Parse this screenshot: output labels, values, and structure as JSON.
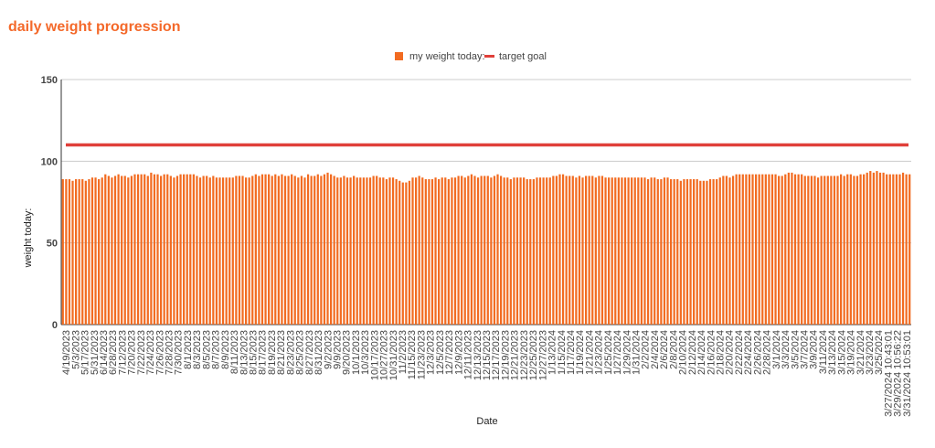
{
  "chart_data": {
    "type": "bar",
    "title": "daily weight progression",
    "xlabel": "Date",
    "ylabel": "weight today:",
    "ylim": [
      0,
      150
    ],
    "yticks": [
      0,
      50,
      100,
      150
    ],
    "grid": true,
    "legend_position": "top-center",
    "colors": {
      "bar": "#f26b21",
      "target": "#e0403a",
      "title": "#f4692a"
    },
    "series": [
      {
        "name": "my weight today:",
        "kind": "bar",
        "values": [
          89,
          89,
          89,
          88,
          89,
          89,
          89,
          88,
          89,
          90,
          90,
          89,
          90,
          92,
          91,
          90,
          91,
          92,
          91,
          91,
          90,
          91,
          92,
          92,
          92,
          92,
          91,
          93,
          92,
          92,
          91,
          92,
          92,
          91,
          90,
          91,
          92,
          92,
          92,
          92,
          92,
          91,
          90,
          91,
          91,
          90,
          91,
          90,
          90,
          90,
          90,
          90,
          90,
          91,
          91,
          91,
          90,
          90,
          91,
          92,
          91,
          92,
          92,
          92,
          91,
          92,
          91,
          92,
          91,
          91,
          92,
          91,
          90,
          91,
          90,
          92,
          91,
          91,
          92,
          91,
          92,
          93,
          92,
          91,
          90,
          90,
          91,
          90,
          90,
          91,
          90,
          90,
          90,
          90,
          90,
          91,
          91,
          90,
          90,
          89,
          90,
          90,
          89,
          88,
          87,
          87,
          88,
          90,
          90,
          91,
          90,
          89,
          89,
          89,
          90,
          89,
          90,
          90,
          89,
          90,
          90,
          91,
          91,
          90,
          91,
          92,
          91,
          90,
          91,
          91,
          91,
          90,
          91,
          92,
          91,
          90,
          90,
          89,
          90,
          90,
          90,
          90,
          89,
          89,
          89,
          90,
          90,
          90,
          90,
          90,
          91,
          91,
          92,
          92,
          91,
          91,
          91,
          90,
          91,
          90,
          91,
          91,
          91,
          90,
          91,
          91,
          90,
          90,
          90,
          90,
          90,
          90,
          90,
          90,
          90,
          90,
          90,
          90,
          90,
          89,
          90,
          90,
          89,
          89,
          90,
          90,
          89,
          89,
          89,
          88,
          89,
          89,
          89,
          89,
          89,
          88,
          88,
          88,
          89,
          89,
          89,
          90,
          91,
          91,
          90,
          91,
          92,
          92,
          92,
          92,
          92,
          92,
          92,
          92,
          92,
          92,
          92,
          92,
          92,
          91,
          91,
          92,
          93,
          93,
          92,
          92,
          92,
          91,
          91,
          91,
          91,
          90,
          91,
          91,
          91,
          91,
          91,
          91,
          92,
          91,
          92,
          92,
          91,
          91,
          92,
          92,
          93,
          94,
          93,
          94,
          93,
          93,
          92,
          92,
          92,
          92,
          92,
          93,
          92,
          92
        ]
      },
      {
        "name": "target goal",
        "kind": "line",
        "value": 110
      }
    ],
    "category_labels": [
      "4/19/2023",
      "5/3/2023",
      "5/17/2023",
      "5/31/2023",
      "6/14/2023",
      "6/28/2023",
      "7/12/2023",
      "7/20/2023",
      "7/22/2023",
      "7/24/2023",
      "7/26/2023",
      "7/28/2023",
      "7/30/2023",
      "8/1/2023",
      "8/3/2023",
      "8/5/2023",
      "8/7/2023",
      "8/9/2023",
      "8/11/2023",
      "8/13/2023",
      "8/15/2023",
      "8/17/2023",
      "8/19/2023",
      "8/21/2023",
      "8/23/2023",
      "8/25/2023",
      "8/27/2023",
      "8/31/2023",
      "9/2/2023",
      "9/9/2023",
      "9/20/2023",
      "10/1/2023",
      "10/3/2023",
      "10/17/2023",
      "10/27/2023",
      "10/31/2023",
      "11/2/2023",
      "11/15/2023",
      "11/23/2023",
      "12/3/2023",
      "12/5/2023",
      "12/7/2023",
      "12/9/2023",
      "12/11/2023",
      "12/13/2023",
      "12/15/2023",
      "12/17/2023",
      "12/19/2023",
      "12/21/2023",
      "12/23/2023",
      "12/25/2023",
      "12/27/2023",
      "1/13/2024",
      "1/15/2024",
      "1/17/2024",
      "1/19/2024",
      "1/21/2024",
      "1/23/2024",
      "1/25/2024",
      "1/27/2024",
      "1/29/2024",
      "1/31/2024",
      "2/2/2024",
      "2/4/2024",
      "2/6/2024",
      "2/8/2024",
      "2/10/2024",
      "2/12/2024",
      "2/14/2024",
      "2/16/2024",
      "2/18/2024",
      "2/20/2024",
      "2/22/2024",
      "2/24/2024",
      "2/26/2024",
      "2/28/2024",
      "3/1/2024",
      "3/3/2024",
      "3/5/2024",
      "3/7/2024",
      "3/9/2024",
      "3/11/2024",
      "3/13/2024",
      "3/15/2024",
      "3/19/2024",
      "3/21/2024",
      "3/23/2024",
      "3/25/2024",
      "3/27/2024 10:43:01",
      "3/29/2024 10:56:22",
      "3/31/2024 10:53:01"
    ]
  }
}
